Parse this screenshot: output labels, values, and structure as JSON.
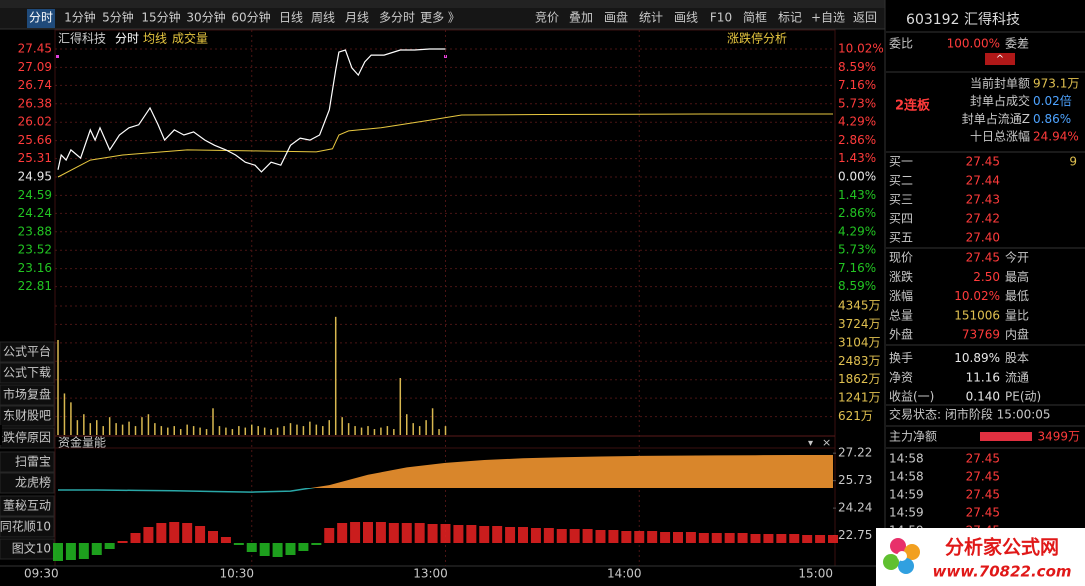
{
  "toolbar": {
    "tabs": [
      "分时",
      "1分钟",
      "5分钟",
      "15分钟",
      "30分钟",
      "60分钟",
      "日线",
      "周线",
      "月线",
      "多分时",
      "更多 》"
    ],
    "tools": [
      "竞价",
      "叠加",
      "画盘",
      "统计",
      "画线",
      "F10",
      "简框",
      "标记",
      "+自选",
      "返回"
    ]
  },
  "sidebar": [
    "公式平台",
    "公式下载",
    "市场复盘",
    "东财股吧",
    "涨跌停原因",
    "扫雷宝",
    "龙虎榜",
    "董秘互动",
    "同花顺10",
    "图文10"
  ],
  "price_chart": {
    "stock": "汇得科技",
    "mode": "分时",
    "avg_label": "均线",
    "volume_label": "成交量",
    "button": "涨跌停分析",
    "xlim": [
      0,
      240
    ],
    "ylim": [
      22.45,
      27.45
    ],
    "yticks": [
      27.45,
      27.09,
      26.74,
      26.38,
      26.02,
      25.66,
      25.31,
      24.95,
      24.59,
      24.24,
      23.88,
      23.52,
      23.16,
      22.81
    ],
    "pct_labels": [
      "10.02%",
      "8.59%",
      "7.16%",
      "5.73%",
      "4.29%",
      "2.86%",
      "1.43%",
      "0.00%",
      "1.43%",
      "2.86%",
      "4.29%",
      "5.73%",
      "7.16%",
      "8.59%"
    ],
    "price": {
      "color": "#ffffff",
      "x": [
        0,
        1,
        2.5,
        4,
        7,
        10,
        11.5,
        13,
        16,
        19,
        22,
        25,
        28.5,
        31,
        33,
        36,
        39,
        42,
        45.5,
        48.5,
        52,
        55,
        58,
        61,
        63,
        66,
        69,
        72,
        75,
        78,
        81,
        84,
        86,
        87,
        89,
        91,
        93,
        95,
        97,
        101,
        106,
        110.5,
        115,
        120
      ],
      "values": [
        25.09,
        25.38,
        25.28,
        25.48,
        25.32,
        25.87,
        25.67,
        25.91,
        25.48,
        25.77,
        25.91,
        25.97,
        26.3,
        25.97,
        25.67,
        25.87,
        25.77,
        25.83,
        25.67,
        25.57,
        25.48,
        25.38,
        25.24,
        25.18,
        25.05,
        25.24,
        25.18,
        25.57,
        25.71,
        25.67,
        25.77,
        26.26,
        27.04,
        27.39,
        27.43,
        27.08,
        26.94,
        27.2,
        27.33,
        27.33,
        27.43,
        27.43,
        27.45,
        27.45
      ]
    },
    "avg": {
      "color": "#e8c840",
      "x": [
        0,
        10,
        20,
        40,
        60,
        80,
        85,
        87,
        90,
        100,
        115,
        125,
        150,
        200,
        240
      ],
      "values": [
        24.95,
        25.28,
        25.38,
        25.48,
        25.46,
        25.44,
        25.5,
        25.77,
        25.85,
        25.91,
        26.06,
        26.16,
        26.17,
        26.18,
        26.18
      ]
    }
  },
  "volume_chart": {
    "ylim": [
      0,
      4345
    ],
    "color": "#d8b850",
    "yticks": [
      {
        "value": 4345,
        "label": "4345万"
      },
      {
        "value": 3724,
        "label": "3724万"
      },
      {
        "value": 3104,
        "label": "3104万"
      },
      {
        "value": 2483,
        "label": "2483万"
      },
      {
        "value": 1862,
        "label": "1862万"
      },
      {
        "value": 1241,
        "label": "1241万"
      },
      {
        "value": 621,
        "label": "621万"
      }
    ],
    "x": [
      0,
      2,
      4,
      6,
      8,
      10,
      12,
      14,
      16,
      18,
      20,
      22,
      24,
      26,
      28,
      30,
      32,
      34,
      36,
      38,
      40,
      42,
      44,
      46,
      48,
      50,
      52,
      54,
      56,
      58,
      60,
      62,
      64,
      66,
      68,
      70,
      72,
      74,
      76,
      78,
      80,
      82,
      84,
      86,
      88,
      90,
      92,
      94,
      96,
      98,
      100,
      102,
      104,
      106,
      108,
      110,
      112,
      114,
      116,
      118,
      120
    ],
    "values": [
      3200,
      1400,
      1100,
      500,
      700,
      400,
      500,
      300,
      600,
      400,
      350,
      450,
      300,
      600,
      700,
      400,
      300,
      250,
      300,
      200,
      350,
      300,
      250,
      200,
      900,
      300,
      250,
      200,
      300,
      250,
      350,
      300,
      250,
      200,
      250,
      300,
      400,
      350,
      300,
      450,
      350,
      300,
      500,
      3980,
      600,
      400,
      300,
      250,
      300,
      200,
      250,
      300,
      200,
      1920,
      700,
      400,
      300,
      500,
      900,
      200,
      300
    ]
  },
  "fund_chart": {
    "title": "资金量能",
    "ylim": [
      21.1,
      27.5
    ],
    "yticks": [
      27.22,
      25.73,
      24.24,
      22.75
    ],
    "up_color": "#e02020",
    "down_color": "#20b020",
    "curve": {
      "color": "#d9862b",
      "x": [
        0,
        12,
        24,
        36,
        48,
        60,
        72,
        84,
        96,
        108,
        120,
        132,
        144,
        156,
        168,
        180,
        192,
        204,
        216,
        228,
        240
      ],
      "values": [
        25.22,
        25.22,
        25.2,
        25.18,
        25.14,
        25.11,
        25.16,
        25.49,
        26.05,
        26.45,
        26.69,
        26.85,
        26.94,
        27.0,
        27.04,
        27.07,
        27.09,
        27.1,
        27.11,
        27.12,
        27.12
      ]
    },
    "flow": {
      "x": [
        0,
        4,
        8,
        12,
        16,
        20,
        24,
        28,
        32,
        36,
        40,
        44,
        48,
        52,
        56,
        60,
        64,
        68,
        72,
        76,
        80,
        84,
        88,
        92,
        96,
        100,
        104,
        108,
        112,
        116,
        120,
        124,
        128,
        132,
        136,
        140,
        144,
        148,
        152,
        156,
        160,
        164,
        168,
        172,
        176,
        180,
        184,
        188,
        192,
        196,
        200,
        204,
        208,
        212,
        216,
        220,
        224,
        228,
        232,
        236,
        240
      ],
      "values": [
        -18,
        -17,
        -16,
        -12,
        -6,
        2,
        10,
        16,
        20,
        21,
        20,
        17,
        12,
        6,
        -2,
        -9,
        -13,
        -14,
        -12,
        -8,
        -2,
        15,
        20,
        21,
        21,
        21,
        20,
        20,
        20,
        19,
        19,
        18,
        18,
        17,
        17,
        16,
        16,
        15,
        15,
        14,
        14,
        14,
        13,
        13,
        12,
        12,
        12,
        11,
        11,
        11,
        10,
        10,
        10,
        10,
        9,
        9,
        9,
        9,
        8,
        8,
        8
      ]
    }
  },
  "time_axis": {
    "xlim": [
      0,
      240
    ],
    "ticks": [
      {
        "value": 0,
        "label": "09:30"
      },
      {
        "value": 60,
        "label": "10:30"
      },
      {
        "value": 120,
        "label": "13:00"
      },
      {
        "value": 180,
        "label": "14:00"
      },
      {
        "value": 240,
        "label": "15:00"
      }
    ]
  },
  "quote": {
    "header": "603192 汇得科技",
    "webi": {
      "label": "委比",
      "value": "100.00%",
      "label2": "委差"
    },
    "badge": "2连板",
    "seal": [
      [
        "当前封单额",
        "973.1万"
      ],
      [
        "封单占成交",
        "0.02倍"
      ],
      [
        "封单占流通Z",
        "0.86%"
      ],
      [
        "十日总涨幅",
        "24.94%"
      ]
    ],
    "book": [
      [
        "买一",
        "27.45",
        "9"
      ],
      [
        "买二",
        "27.44"
      ],
      [
        "买三",
        "27.43"
      ],
      [
        "买四",
        "27.42"
      ],
      [
        "买五",
        "27.40"
      ]
    ],
    "stats": [
      [
        "现价",
        "27.45",
        "今开"
      ],
      [
        "涨跌",
        "2.50",
        "最高"
      ],
      [
        "涨幅",
        "10.02%",
        "最低"
      ],
      [
        "总量",
        "151006",
        "量比"
      ],
      [
        "外盘",
        "73769",
        "内盘"
      ],
      [
        "换手",
        "10.89%",
        "股本"
      ],
      [
        "净资",
        "11.16",
        "流通"
      ],
      [
        "收益(一)",
        "0.140",
        "PE(动)"
      ]
    ],
    "status": "交易状态: 闭市阶段 15:00:05",
    "main_net": {
      "label": "主力净额",
      "value": "3499万"
    },
    "trades": [
      [
        "14:58",
        "27.45"
      ],
      [
        "14:58",
        "27.45"
      ],
      [
        "14:59",
        "27.45"
      ],
      [
        "14:59",
        "27.45"
      ],
      [
        "14:59",
        "27.45"
      ]
    ]
  },
  "logo": {
    "name": "分析家公式网",
    "url": "www.70822.com"
  }
}
